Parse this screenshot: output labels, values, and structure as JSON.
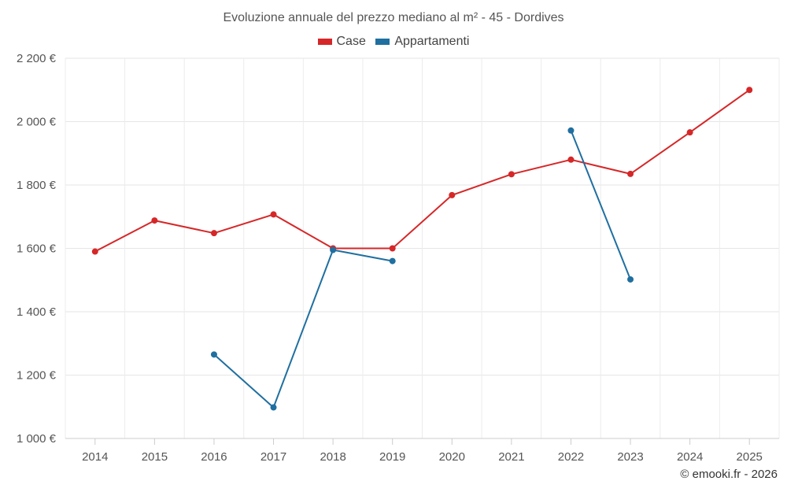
{
  "chart_data": {
    "type": "line",
    "title": "Evoluzione annuale del prezzo mediano al m² - 45 - Dordives",
    "categories": [
      "2014",
      "2015",
      "2016",
      "2017",
      "2018",
      "2019",
      "2020",
      "2021",
      "2022",
      "2023",
      "2024",
      "2025"
    ],
    "series": [
      {
        "name": "Case",
        "color": "#d62728",
        "values": [
          1590,
          1688,
          1648,
          1707,
          1600,
          1600,
          1768,
          1834,
          1880,
          1835,
          1966,
          2100
        ]
      },
      {
        "name": "Appartamenti",
        "color": "#1f6fa0",
        "values": [
          null,
          null,
          1265,
          1098,
          1595,
          1560,
          null,
          null,
          1972,
          1502,
          null,
          null
        ]
      }
    ],
    "ylim": [
      1000,
      2200
    ],
    "yticks": [
      1000,
      1200,
      1400,
      1600,
      1800,
      2000,
      2200
    ],
    "ytick_labels": [
      "1 000 €",
      "1 200 €",
      "1 400 €",
      "1 600 €",
      "1 800 €",
      "2 000 €",
      "2 200 €"
    ],
    "xlabel": "",
    "ylabel": "",
    "grid": true,
    "legend_position": "top-center"
  },
  "credit": "© emooki.fr - 2026"
}
